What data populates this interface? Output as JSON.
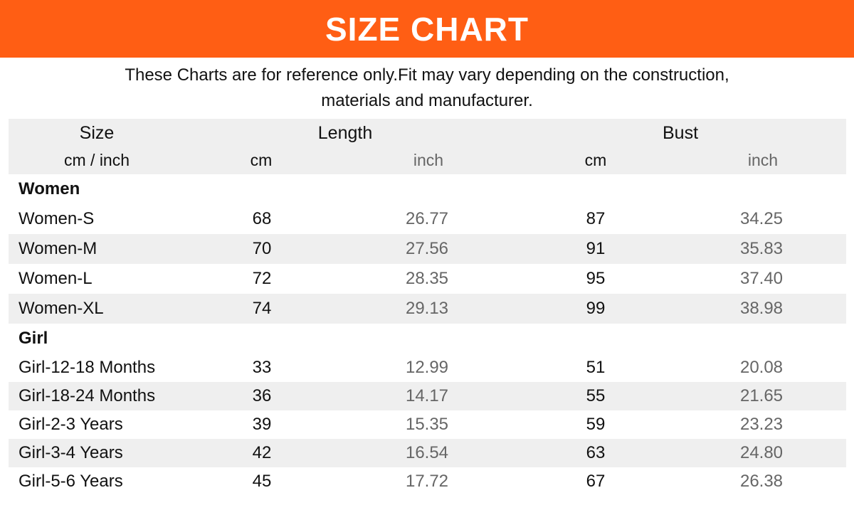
{
  "banner": {
    "title": "SIZE CHART",
    "color": "#ff5e14"
  },
  "subtitle": {
    "line1": "These Charts are for reference only.Fit may vary depending on the construction,",
    "line2": "materials and manufacturer."
  },
  "header": {
    "size": "Size",
    "size_unit": "cm / inch",
    "length": "Length",
    "bust": "Bust",
    "cm": "cm",
    "inch": "inch"
  },
  "groups": [
    {
      "name": "Women",
      "rows": [
        {
          "size": "Women-S",
          "length_cm": "68",
          "length_in": "26.77",
          "bust_cm": "87",
          "bust_in": "34.25"
        },
        {
          "size": "Women-M",
          "length_cm": "70",
          "length_in": "27.56",
          "bust_cm": "91",
          "bust_in": "35.83"
        },
        {
          "size": "Women-L",
          "length_cm": "72",
          "length_in": "28.35",
          "bust_cm": "95",
          "bust_in": "37.40"
        },
        {
          "size": "Women-XL",
          "length_cm": "74",
          "length_in": "29.13",
          "bust_cm": "99",
          "bust_in": "38.98"
        }
      ]
    },
    {
      "name": "Girl",
      "rows": [
        {
          "size": "Girl-12-18 Months",
          "length_cm": "33",
          "length_in": "12.99",
          "bust_cm": "51",
          "bust_in": "20.08"
        },
        {
          "size": "Girl-18-24 Months",
          "length_cm": "36",
          "length_in": "14.17",
          "bust_cm": "55",
          "bust_in": "21.65"
        },
        {
          "size": "Girl-2-3 Years",
          "length_cm": "39",
          "length_in": "15.35",
          "bust_cm": "59",
          "bust_in": "23.23"
        },
        {
          "size": "Girl-3-4 Years",
          "length_cm": "42",
          "length_in": "16.54",
          "bust_cm": "63",
          "bust_in": "24.80"
        },
        {
          "size": "Girl-5-6 Years",
          "length_cm": "45",
          "length_in": "17.72",
          "bust_cm": "67",
          "bust_in": "26.38"
        }
      ]
    }
  ]
}
